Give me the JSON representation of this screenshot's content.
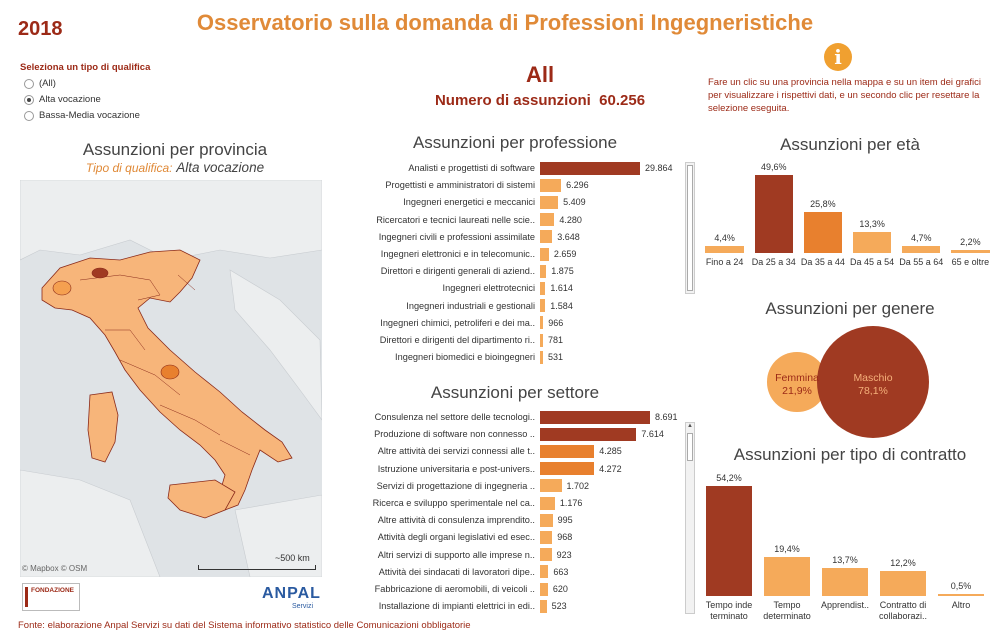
{
  "header": {
    "year": "2018",
    "title": "Osservatorio sulla domanda di Professioni Ingegneristiche",
    "info_text": "Fare un clic su una provincia nella mappa e su un item dei grafici per visualizzare i rispettivi dati, e un secondo clic per resettare la selezione eseguita."
  },
  "filter": {
    "title": "Seleziona un tipo di qualifica",
    "options": [
      {
        "label": "(All)",
        "selected": false
      },
      {
        "label": "Alta vocazione",
        "selected": true
      },
      {
        "label": "Bassa-Media vocazione",
        "selected": false
      }
    ]
  },
  "kpi": {
    "selection": "All",
    "label": "Numero  di assunzioni",
    "value": "60.256"
  },
  "map_section": {
    "title": "Assunzioni per provincia",
    "subtitle_label": "Tipo di qualifica:",
    "subtitle_value": "Alta vocazione",
    "credit": "© Mapbox © OSM",
    "scale": "~500 km"
  },
  "logos": {
    "fondazione": "FONDAZIONE",
    "anpal": "ANPAL",
    "anpal_sub": "Servizi"
  },
  "footer": "Fonte: elaborazione Anpal Servizi su dati del Sistema informativo statistico delle Comunicazioni obbligatorie",
  "chart_data": [
    {
      "id": "professione",
      "type": "bar",
      "orientation": "horizontal",
      "title": "Assunzioni per professione",
      "categories": [
        "Analisti e progettisti di software",
        "Progettisti e amministratori di sistemi",
        "Ingegneri energetici e meccanici",
        "Ricercatori e tecnici laureati nelle scie..",
        "Ingegneri civili e professioni assimilate",
        "Ingegneri elettronici e in telecomunic..",
        "Direttori e dirigenti generali di aziend..",
        "Ingegneri elettrotecnici",
        "Ingegneri industriali e gestionali",
        "Ingegneri chimici, petroliferi e dei ma..",
        "Direttori e dirigenti del dipartimento ri..",
        "Ingegneri biomedici e bioingegneri"
      ],
      "values": [
        29864,
        6296,
        5409,
        4280,
        3648,
        2659,
        1875,
        1614,
        1584,
        966,
        781,
        531
      ],
      "value_labels": [
        "29.864",
        "6.296",
        "5.409",
        "4.280",
        "3.648",
        "2.659",
        "1.875",
        "1.614",
        "1.584",
        "966",
        "781",
        "531"
      ],
      "colors": {
        "max": "#a03a22",
        "high": "#e8802e",
        "low": "#f5aa5a"
      }
    },
    {
      "id": "settore",
      "type": "bar",
      "orientation": "horizontal",
      "title": "Assunzioni per settore",
      "categories": [
        "Consulenza nel settore delle tecnologi..",
        "Produzione di software non connesso ..",
        "Altre attività dei servizi connessi alle t..",
        "Istruzione universitaria e post-univers..",
        "Servizi di progettazione di ingegneria ..",
        "Ricerca e sviluppo sperimentale nel ca..",
        "Altre attività di consulenza imprendito..",
        "Attività degli organi legislativi ed esec..",
        "Altri servizi di supporto alle imprese n..",
        "Attività dei sindacati di lavoratori dipe..",
        "Fabbricazione di aeromobili, di veicoli ..",
        "Installazione di impianti elettrici in edi.."
      ],
      "values": [
        8691,
        7614,
        4285,
        4272,
        1702,
        1176,
        995,
        968,
        923,
        663,
        620,
        523
      ],
      "value_labels": [
        "8.691",
        "7.614",
        "4.285",
        "4.272",
        "1.702",
        "1.176",
        "995",
        "968",
        "923",
        "663",
        "620",
        "523"
      ]
    },
    {
      "id": "eta",
      "type": "bar",
      "title": "Assunzioni per età",
      "categories": [
        "Fino a 24",
        "Da 25 a 34",
        "Da 35 a 44",
        "Da 45 a 54",
        "Da 55 a 64",
        "65 e oltre"
      ],
      "values": [
        4.4,
        49.6,
        25.8,
        13.3,
        4.7,
        2.2
      ],
      "value_labels": [
        "4,4%",
        "49,6%",
        "25,8%",
        "13,3%",
        "4,7%",
        "2,2%"
      ]
    },
    {
      "id": "genere",
      "type": "bubble",
      "title": "Assunzioni per genere",
      "categories": [
        "Femmina",
        "Maschio"
      ],
      "values": [
        21.9,
        78.1
      ],
      "value_labels": [
        "21,9%",
        "78,1%"
      ]
    },
    {
      "id": "contratto",
      "type": "bar",
      "title": "Assunzioni per tipo di contratto",
      "categories": [
        "Tempo inde terminato",
        "Tempo determinato",
        "Apprendist..",
        "Contratto di collaborazi..",
        "Altro"
      ],
      "values": [
        54.2,
        19.4,
        13.7,
        12.2,
        0.5
      ],
      "value_labels": [
        "54,2%",
        "19,4%",
        "13,7%",
        "12,2%",
        "0,5%"
      ]
    }
  ]
}
